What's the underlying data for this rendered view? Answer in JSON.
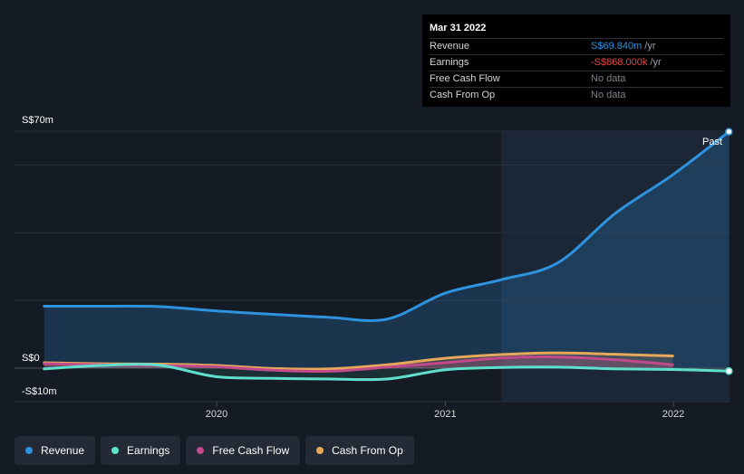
{
  "chart_data": {
    "type": "line",
    "y_axis": {
      "top_label": "S$70m",
      "zero_label": "S$0",
      "bottom_label": "-S$10m",
      "ylim": [
        -10,
        70
      ],
      "unit": "S$m"
    },
    "x_ticks": [
      "2020",
      "2021",
      "2022"
    ],
    "past_label": "Past",
    "series": [
      {
        "name": "Revenue",
        "color": "#2e93de",
        "x": [
          "2019-03-31",
          "2019-06-30",
          "2019-09-30",
          "2019-12-31",
          "2020-03-31",
          "2020-06-30",
          "2020-09-30",
          "2020-12-31",
          "2021-03-31",
          "2021-06-30",
          "2021-09-30",
          "2021-12-31",
          "2022-03-31"
        ],
        "values": [
          18.3,
          18.3,
          18.2,
          16.9,
          15.9,
          15.0,
          14.5,
          22.1,
          26.1,
          31.1,
          45.7,
          57.1,
          69.84
        ]
      },
      {
        "name": "Earnings",
        "color": "#5ee0cc",
        "x": [
          "2019-03-31",
          "2019-06-30",
          "2019-09-30",
          "2019-12-31",
          "2020-03-31",
          "2020-06-30",
          "2020-09-30",
          "2020-12-31",
          "2021-03-31",
          "2021-06-30",
          "2021-09-30",
          "2021-12-31",
          "2022-03-31"
        ],
        "values": [
          -0.2,
          0.8,
          0.9,
          -2.5,
          -3.0,
          -3.2,
          -3.2,
          -0.5,
          0.2,
          0.3,
          -0.2,
          -0.4,
          -0.868
        ]
      },
      {
        "name": "Free Cash Flow",
        "color": "#c04a8a",
        "x": [
          "2019-03-31",
          "2019-06-30",
          "2019-09-30",
          "2019-12-31",
          "2020-03-31",
          "2020-06-30",
          "2020-09-30",
          "2020-12-31",
          "2021-03-31",
          "2021-06-30",
          "2021-09-30",
          "2021-12-31"
        ],
        "values": [
          1.3,
          1.0,
          0.8,
          0.4,
          -0.6,
          -0.9,
          0.3,
          1.6,
          3.0,
          3.3,
          2.5,
          1.0
        ]
      },
      {
        "name": "Cash From Op",
        "color": "#e8a85a",
        "x": [
          "2019-03-31",
          "2019-06-30",
          "2019-09-30",
          "2019-12-31",
          "2020-03-31",
          "2020-06-30",
          "2020-09-30",
          "2020-12-31",
          "2021-03-31",
          "2021-06-30",
          "2021-09-30",
          "2021-12-31"
        ],
        "values": [
          1.6,
          1.3,
          1.2,
          0.8,
          -0.1,
          -0.2,
          1.0,
          2.9,
          4.0,
          4.5,
          4.1,
          3.6
        ]
      }
    ],
    "grid": true,
    "legend_position": "bottom-left"
  },
  "tooltip": {
    "date": "Mar 31 2022",
    "rows": [
      {
        "label": "Revenue",
        "value": "S$69.840m",
        "unit": "/yr",
        "color": "#2e93de"
      },
      {
        "label": "Earnings",
        "value": "-S$868.000k",
        "unit": "/yr",
        "color": "#e84545"
      },
      {
        "label": "Free Cash Flow",
        "value": "No data",
        "unit": "",
        "color": "#7d838c"
      },
      {
        "label": "Cash From Op",
        "value": "No data",
        "unit": "",
        "color": "#7d838c"
      }
    ]
  },
  "legend": [
    {
      "label": "Revenue",
      "color": "#2e93de"
    },
    {
      "label": "Earnings",
      "color": "#5ee0cc"
    },
    {
      "label": "Free Cash Flow",
      "color": "#c04a8a"
    },
    {
      "label": "Cash From Op",
      "color": "#e8a85a"
    }
  ]
}
